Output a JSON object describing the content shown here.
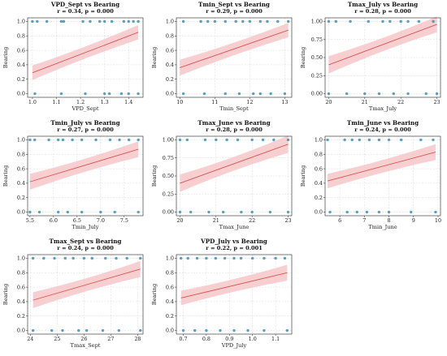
{
  "chart_data": [
    {
      "type": "scatter",
      "title": "VPD_Sept vs Bearing",
      "subtitle": "r = 0.34, p = 0.000",
      "xlabel": "VPD_Sept",
      "ylabel": "Bearing",
      "xlim": [
        0.98,
        1.46
      ],
      "ylim": [
        -0.05,
        1.05
      ],
      "xticks": [
        1.0,
        1.1,
        1.2,
        1.3,
        1.4
      ],
      "xtick_labels": [
        "1.0",
        "1.1",
        "1.2",
        "1.3",
        "1.4"
      ],
      "yticks": [
        0.0,
        0.2,
        0.4,
        0.6,
        0.8,
        1.0
      ],
      "ytick_labels": [
        "0.0",
        "0.2",
        "0.4",
        "0.6",
        "0.8",
        "1.0"
      ],
      "points_y1": [
        1.0,
        1.02,
        1.06,
        1.12,
        1.13,
        1.21,
        1.24,
        1.28,
        1.3,
        1.33,
        1.38,
        1.4,
        1.42,
        1.44
      ],
      "points_y0": [
        1.01,
        1.12,
        1.22,
        1.3,
        1.32,
        1.37,
        1.4,
        1.44
      ],
      "fit": {
        "x": [
          1.0,
          1.44
        ],
        "y": [
          0.29,
          0.85
        ]
      },
      "ci_halfwidth": [
        0.1,
        0.045,
        0.1
      ],
      "grid": true,
      "legend": "none",
      "colors": {
        "points": "#3a91b8",
        "line": "#d9534f",
        "band": "#f6c7c9"
      }
    },
    {
      "type": "scatter",
      "title": "Tmin_Sept vs Bearing",
      "subtitle": "r = 0.29, p = 0.000",
      "xlabel": "Tmin_Sept",
      "ylabel": "Bearing",
      "xlim": [
        9.9,
        13.2
      ],
      "ylim": [
        -0.05,
        1.05
      ],
      "xticks": [
        10,
        11,
        12,
        13
      ],
      "xtick_labels": [
        "10",
        "11",
        "12",
        "13"
      ],
      "yticks": [
        0.0,
        0.2,
        0.4,
        0.6,
        0.8,
        1.0
      ],
      "ytick_labels": [
        "0.0",
        "0.2",
        "0.4",
        "0.6",
        "0.8",
        "1.0"
      ],
      "points_y1": [
        10.1,
        10.6,
        10.8,
        11.0,
        11.3,
        11.6,
        11.8,
        12.0,
        12.3,
        12.5,
        12.8,
        13.1
      ],
      "points_y0": [
        10.1,
        10.7,
        11.3,
        11.7,
        12.1,
        12.3,
        12.6,
        13.0
      ],
      "fit": {
        "x": [
          10.0,
          13.1
        ],
        "y": [
          0.36,
          0.88
        ]
      },
      "ci_halfwidth": [
        0.11,
        0.05,
        0.1
      ],
      "grid": true,
      "legend": "none",
      "colors": {
        "points": "#3a91b8",
        "line": "#d9534f",
        "band": "#f6c7c9"
      }
    },
    {
      "type": "scatter",
      "title": "Tmax_July vs Bearing",
      "subtitle": "r = 0.28, p = 0.000",
      "xlabel": "Tmax_July",
      "ylabel": "Bearing",
      "xlim": [
        19.9,
        23.1
      ],
      "ylim": [
        -0.05,
        1.05
      ],
      "xticks": [
        20,
        21,
        22,
        23
      ],
      "xtick_labels": [
        "20",
        "21",
        "22",
        "23"
      ],
      "yticks": [
        0.0,
        0.25,
        0.5,
        0.75,
        1.0
      ],
      "ytick_labels": [
        "0.00",
        "0.25",
        "0.50",
        "0.75",
        "1.00"
      ],
      "points_y1": [
        20.0,
        20.2,
        20.6,
        21.1,
        21.5,
        21.7,
        22.0,
        22.2,
        22.5,
        22.9
      ],
      "points_y0": [
        20.0,
        20.5,
        21.0,
        21.4,
        21.8,
        22.2,
        22.7,
        23.0
      ],
      "fit": {
        "x": [
          20.0,
          23.0
        ],
        "y": [
          0.4,
          0.96
        ]
      },
      "ci_halfwidth": [
        0.12,
        0.05,
        0.11
      ],
      "grid": true,
      "legend": "none",
      "colors": {
        "points": "#3a91b8",
        "line": "#d9534f",
        "band": "#f6c7c9"
      }
    },
    {
      "type": "scatter",
      "title": "Tmin_July vs Bearing",
      "subtitle": "r = 0.27, p = 0.000",
      "xlabel": "Tmin_July",
      "ylabel": "Bearing",
      "xlim": [
        5.45,
        7.9
      ],
      "ylim": [
        -0.05,
        1.05
      ],
      "xticks": [
        5.5,
        6.0,
        6.5,
        7.0,
        7.5
      ],
      "xtick_labels": [
        "5.5",
        "6.0",
        "6.5",
        "7.0",
        "7.5"
      ],
      "yticks": [
        0.0,
        0.2,
        0.4,
        0.6,
        0.8,
        1.0
      ],
      "ytick_labels": [
        "0.0",
        "0.2",
        "0.4",
        "0.6",
        "0.8",
        "1.0"
      ],
      "points_y1": [
        5.5,
        5.6,
        5.9,
        6.1,
        6.2,
        6.4,
        6.6,
        6.9,
        7.2,
        7.4,
        7.6,
        7.8
      ],
      "points_y0": [
        5.5,
        5.7,
        6.1,
        6.3,
        6.6,
        7.0,
        7.3,
        7.8
      ],
      "fit": {
        "x": [
          5.5,
          7.8
        ],
        "y": [
          0.42,
          0.87
        ]
      },
      "ci_halfwidth": [
        0.11,
        0.05,
        0.11
      ],
      "grid": true,
      "legend": "none",
      "colors": {
        "points": "#3a91b8",
        "line": "#d9534f",
        "band": "#f6c7c9"
      }
    },
    {
      "type": "scatter",
      "title": "Tmax_June vs Bearing",
      "subtitle": "r = 0.28, p = 0.000",
      "xlabel": "Tmax_June",
      "ylabel": "Bearing",
      "xlim": [
        19.9,
        23.1
      ],
      "ylim": [
        -0.05,
        1.05
      ],
      "xticks": [
        20,
        21,
        22,
        23
      ],
      "xtick_labels": [
        "20",
        "21",
        "22",
        "23"
      ],
      "yticks": [
        0.0,
        0.25,
        0.5,
        0.75,
        1.0
      ],
      "ytick_labels": [
        "0.00",
        "0.25",
        "0.50",
        "0.75",
        "1.00"
      ],
      "points_y1": [
        20.0,
        20.2,
        20.7,
        21.0,
        21.3,
        21.6,
        22.0,
        22.3,
        22.6,
        23.0
      ],
      "points_y0": [
        20.0,
        20.3,
        20.8,
        21.2,
        21.7,
        22.0,
        22.5,
        23.0
      ],
      "fit": {
        "x": [
          20.0,
          23.0
        ],
        "y": [
          0.4,
          0.94
        ]
      },
      "ci_halfwidth": [
        0.12,
        0.05,
        0.12
      ],
      "grid": true,
      "legend": "none",
      "colors": {
        "points": "#3a91b8",
        "line": "#d9534f",
        "band": "#f6c7c9"
      }
    },
    {
      "type": "scatter",
      "title": "Tmin_June vs Bearing",
      "subtitle": "r = 0.24, p = 0.000",
      "xlabel": "Tmin_June",
      "ylabel": "Bearing",
      "xlim": [
        5.4,
        10.1
      ],
      "ylim": [
        -0.05,
        1.05
      ],
      "xticks": [
        6,
        7,
        8,
        9,
        10
      ],
      "xtick_labels": [
        "6",
        "7",
        "8",
        "9",
        "10"
      ],
      "yticks": [
        0.0,
        0.2,
        0.4,
        0.6,
        0.8,
        1.0
      ],
      "ytick_labels": [
        "0.0",
        "0.2",
        "0.4",
        "0.6",
        "0.8",
        "1.0"
      ],
      "points_y1": [
        5.5,
        6.2,
        6.5,
        6.8,
        7.2,
        7.6,
        8.0,
        8.5,
        9.3,
        9.8
      ],
      "points_y0": [
        5.6,
        6.3,
        6.7,
        7.1,
        7.6,
        8.0,
        8.9,
        9.9
      ],
      "fit": {
        "x": [
          5.5,
          9.9
        ],
        "y": [
          0.43,
          0.83
        ]
      },
      "ci_halfwidth": [
        0.1,
        0.05,
        0.11
      ],
      "grid": true,
      "legend": "none",
      "colors": {
        "points": "#3a91b8",
        "line": "#d9534f",
        "band": "#f6c7c9"
      }
    },
    {
      "type": "scatter",
      "title": "Tmax_Sept vs Bearing",
      "subtitle": "r = 0.24, p = 0.000",
      "xlabel": "Tmax_Sept",
      "ylabel": "Bearing",
      "xlim": [
        23.9,
        28.2
      ],
      "ylim": [
        -0.05,
        1.05
      ],
      "xticks": [
        24,
        25,
        26,
        27,
        28
      ],
      "xtick_labels": [
        "24",
        "25",
        "26",
        "27",
        "28"
      ],
      "yticks": [
        0.0,
        0.2,
        0.4,
        0.6,
        0.8,
        1.0
      ],
      "ytick_labels": [
        "0.0",
        "0.2",
        "0.4",
        "0.6",
        "0.8",
        "1.0"
      ],
      "points_y1": [
        24.1,
        24.5,
        24.9,
        25.3,
        25.6,
        26.0,
        26.3,
        26.8,
        27.2,
        27.6,
        28.1
      ],
      "points_y0": [
        24.1,
        24.8,
        25.2,
        25.8,
        26.1,
        26.7,
        27.3,
        28.1
      ],
      "fit": {
        "x": [
          24.1,
          28.1
        ],
        "y": [
          0.42,
          0.85
        ]
      },
      "ci_halfwidth": [
        0.11,
        0.05,
        0.11
      ],
      "grid": true,
      "legend": "none",
      "colors": {
        "points": "#3a91b8",
        "line": "#d9534f",
        "band": "#f6c7c9"
      }
    },
    {
      "type": "scatter",
      "title": "VPD_July vs Bearing",
      "subtitle": "r = 0.22, p = 0.001",
      "xlabel": "VPD_July",
      "ylabel": "Bearing",
      "xlim": [
        0.67,
        1.17
      ],
      "ylim": [
        -0.05,
        1.05
      ],
      "xticks": [
        0.7,
        0.8,
        0.9,
        1.0,
        1.1
      ],
      "xtick_labels": [
        "0.7",
        "0.8",
        "0.9",
        "1.0",
        "1.1"
      ],
      "yticks": [
        0.0,
        0.2,
        0.4,
        0.6,
        0.8,
        1.0
      ],
      "ytick_labels": [
        "0.0",
        "0.2",
        "0.4",
        "0.6",
        "0.8",
        "1.0"
      ],
      "points_y1": [
        0.69,
        0.72,
        0.76,
        0.8,
        0.84,
        0.88,
        0.92,
        0.95,
        1.0,
        1.05,
        1.1,
        1.14
      ],
      "points_y0": [
        0.7,
        0.75,
        0.8,
        0.86,
        0.92,
        0.98,
        1.05,
        1.15
      ],
      "fit": {
        "x": [
          0.69,
          1.15
        ],
        "y": [
          0.45,
          0.8
        ]
      },
      "ci_halfwidth": [
        0.1,
        0.05,
        0.11
      ],
      "grid": true,
      "legend": "none",
      "colors": {
        "points": "#3a91b8",
        "line": "#d9534f",
        "band": "#f6c7c9"
      }
    }
  ]
}
